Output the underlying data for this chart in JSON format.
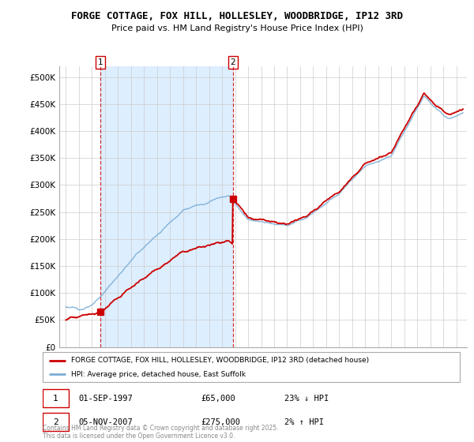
{
  "title": "FORGE COTTAGE, FOX HILL, HOLLESLEY, WOODBRIDGE, IP12 3RD",
  "subtitle": "Price paid vs. HM Land Registry's House Price Index (HPI)",
  "ylim": [
    0,
    520000
  ],
  "yticks": [
    0,
    50000,
    100000,
    150000,
    200000,
    250000,
    300000,
    350000,
    400000,
    450000,
    500000
  ],
  "ytick_labels": [
    "£0",
    "£50K",
    "£100K",
    "£150K",
    "£200K",
    "£250K",
    "£300K",
    "£350K",
    "£400K",
    "£450K",
    "£500K"
  ],
  "purchase1_date": "01-SEP-1997",
  "purchase1_price": 65000,
  "purchase1_label": "23% ↓ HPI",
  "purchase1_year": 1997.67,
  "purchase2_date": "05-NOV-2007",
  "purchase2_price": 275000,
  "purchase2_label": "2% ↑ HPI",
  "purchase2_year": 2007.84,
  "legend_property": "FORGE COTTAGE, FOX HILL, HOLLESLEY, WOODBRIDGE, IP12 3RD (detached house)",
  "legend_hpi": "HPI: Average price, detached house, East Suffolk",
  "footer": "Contains HM Land Registry data © Crown copyright and database right 2025.\nThis data is licensed under the Open Government Licence v3.0.",
  "property_line_color": "#cc0000",
  "hpi_line_color": "#7aadd4",
  "shade_color": "#ddeeff",
  "bg_color": "#ffffff",
  "grid_color": "#cccccc"
}
